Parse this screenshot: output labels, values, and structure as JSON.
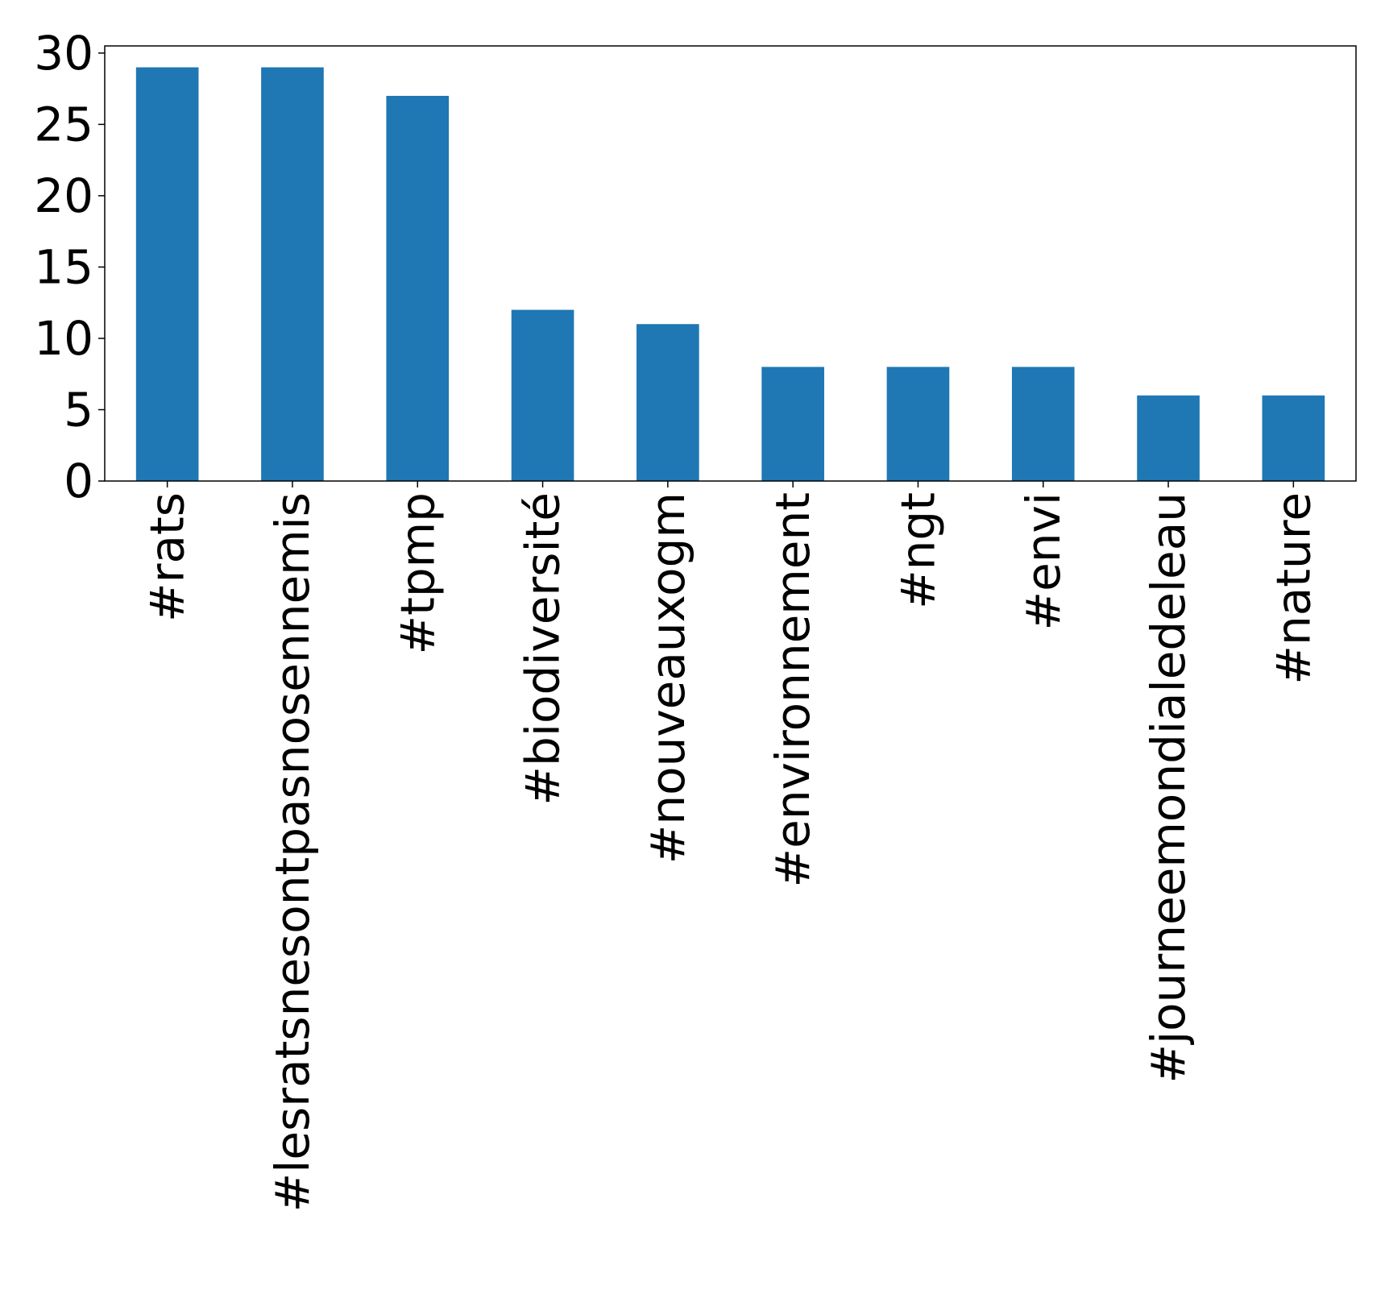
{
  "chart_data": {
    "type": "bar",
    "title": "",
    "xlabel": "",
    "ylabel": "",
    "categories": [
      "#rats",
      "#lesratsnesontpasnosennemis",
      "#tpmp",
      "#biodiversité",
      "#nouveauxogm",
      "#environnement",
      "#ngt",
      "#envi",
      "#journeemondialedeleau",
      "#nature"
    ],
    "values": [
      29,
      29,
      27,
      12,
      11,
      8,
      8,
      8,
      6,
      6
    ],
    "ylim": [
      0,
      30.5
    ],
    "yticks": [
      0,
      5,
      10,
      15,
      20,
      25,
      30
    ],
    "bar_color": "#1f77b4",
    "grid": false,
    "legend": "none"
  }
}
